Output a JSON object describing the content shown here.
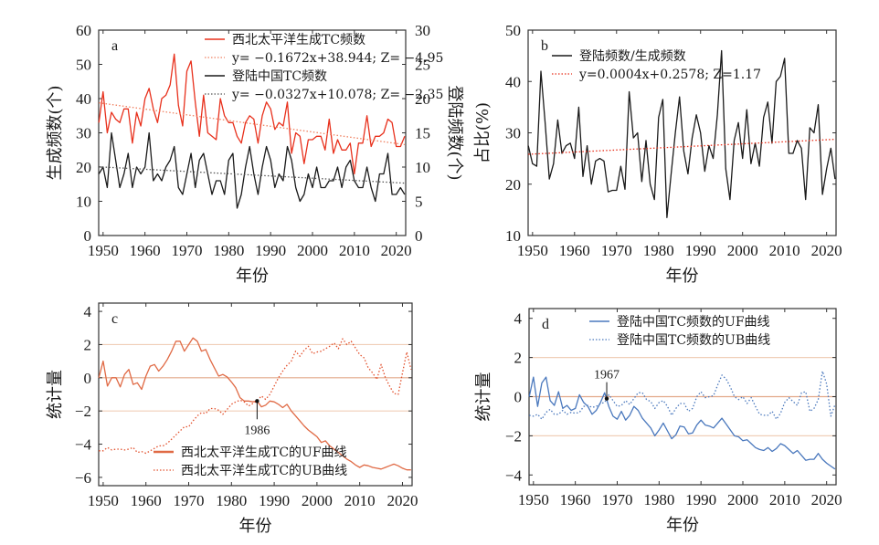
{
  "chart_data": [
    {
      "panel": "a",
      "type": "line",
      "xlabel": "年份",
      "ylabel": "生成频数(个)",
      "ylabel_right": "登陆频数(个)",
      "xlim": [
        1949,
        2022
      ],
      "ylim": [
        0,
        60
      ],
      "ylim_right": [
        0,
        30
      ],
      "xticks": [
        1950,
        1960,
        1970,
        1980,
        1990,
        2000,
        2010,
        2020
      ],
      "yticks": [
        0,
        10,
        20,
        30,
        40,
        50,
        60
      ],
      "yticks_right": [
        0,
        5,
        10,
        15,
        20,
        25,
        30
      ],
      "legend_position": "top-right",
      "x_start": 1949,
      "series": [
        {
          "name": "西北太平洋生成TC频数",
          "axis": "left",
          "color": "#e8301c",
          "style": "solid",
          "values": [
            33,
            42,
            30,
            36,
            34,
            33,
            37,
            37,
            27,
            36,
            32,
            40,
            43,
            37,
            33,
            40,
            41,
            44,
            53,
            38,
            32,
            48,
            51,
            39,
            29,
            41,
            30,
            29,
            28,
            40,
            35,
            33,
            33,
            29,
            27,
            33,
            35,
            34,
            27,
            35,
            39,
            37,
            31,
            33,
            32,
            39,
            24,
            30,
            29,
            21,
            28,
            28,
            29,
            29,
            25,
            34,
            24,
            28,
            25,
            25,
            27,
            18,
            27,
            27,
            35,
            26,
            29,
            29,
            30,
            34,
            33,
            26,
            26,
            29
          ]
        },
        {
          "name": "y= −0.1672x+38.944; Z= −4.95",
          "axis": "left",
          "color": "#f08060",
          "style": "dotted",
          "trend": {
            "slope": -0.1672,
            "intercept": 38.944,
            "z": -4.95
          }
        },
        {
          "name": "登陆中国TC频数",
          "axis": "right",
          "color": "#1a1a1a",
          "style": "solid",
          "values": [
            9,
            10,
            7,
            15,
            11,
            7,
            9,
            12,
            7,
            10,
            9,
            10,
            15,
            8,
            9,
            8,
            10,
            11,
            13,
            7,
            6,
            9,
            12,
            7,
            11,
            12,
            9,
            6,
            8,
            8,
            6,
            11,
            12,
            4,
            6,
            10,
            13,
            9,
            6,
            10,
            13,
            11,
            7,
            9,
            8,
            13,
            11,
            7,
            5,
            6,
            9,
            7,
            10,
            7,
            7,
            8,
            8,
            10,
            7,
            10,
            11,
            8,
            7,
            7,
            10,
            7,
            5,
            9,
            9,
            12,
            6,
            6,
            7,
            6
          ]
        },
        {
          "name": "y= −0.0327x+10.078; Z= −2.35",
          "axis": "right",
          "color": "#555555",
          "style": "dotted",
          "trend": {
            "slope": -0.0327,
            "intercept": 10.078,
            "z": -2.35
          }
        }
      ]
    },
    {
      "panel": "b",
      "type": "line",
      "xlabel": "年份",
      "ylabel": "占比(%)",
      "xlim": [
        1949,
        2022
      ],
      "ylim": [
        10,
        50
      ],
      "xticks": [
        1950,
        1960,
        1970,
        1980,
        1990,
        2000,
        2010,
        2020
      ],
      "yticks": [
        10,
        20,
        30,
        40,
        50
      ],
      "legend_position": "top-left",
      "x_start": 1949,
      "series": [
        {
          "name": "登陆频数/生成频数",
          "color": "#1a1a1a",
          "style": "solid",
          "values": [
            27.5,
            24,
            23.5,
            42,
            32,
            21,
            24,
            32.5,
            26,
            27.5,
            28,
            25,
            35,
            21.5,
            27.5,
            20,
            24.5,
            25,
            24.5,
            18.5,
            18.8,
            18.8,
            23.5,
            19,
            38,
            29,
            30,
            20.5,
            28.5,
            20,
            17,
            33,
            36.5,
            13.5,
            22,
            30,
            37,
            26.5,
            22,
            29,
            33.5,
            30,
            22.5,
            27.5,
            25,
            33.5,
            46,
            23,
            17,
            28.5,
            32,
            25,
            34.5,
            24,
            28,
            23.5,
            33,
            36,
            28,
            40,
            41,
            44.5,
            26,
            26,
            28.5,
            27,
            17,
            31,
            30,
            35.5,
            18,
            23,
            27,
            21
          ]
        },
        {
          "name": "y=0.0004x+0.2578; Z=1.17",
          "color": "#e8301c",
          "style": "dotted",
          "trend": {
            "slope": 0.0004,
            "intercept": 0.2578,
            "z": 1.17
          }
        }
      ]
    },
    {
      "panel": "c",
      "type": "line",
      "xlabel": "年份",
      "ylabel": "统计量",
      "xlim": [
        1949,
        2022
      ],
      "ylim": [
        -6.5,
        4.5
      ],
      "xticks": [
        1950,
        1960,
        1970,
        1980,
        1990,
        2000,
        2010,
        2020
      ],
      "yticks": [
        -6,
        -4,
        -2,
        0,
        2,
        4
      ],
      "reference_lines": [
        2,
        0,
        -2
      ],
      "legend_position": "bottom-center",
      "annotation": {
        "label": "1986",
        "x": 1986,
        "y": -1.4
      },
      "x_start": 1949,
      "series": [
        {
          "name": "西北太平洋生成TC的UF曲线",
          "color": "#e06a45",
          "style": "solid",
          "values": [
            0,
            1.0,
            -0.5,
            0,
            0,
            -0.55,
            0.2,
            0.5,
            -0.4,
            -0.3,
            -0.7,
            0.1,
            0.7,
            0.8,
            0.4,
            0.7,
            1.1,
            1.6,
            2.2,
            2.2,
            1.6,
            2.0,
            2.4,
            2.2,
            1.6,
            1.7,
            1.1,
            0.6,
            0.1,
            0.2,
            0.05,
            -0.25,
            -0.6,
            -1.2,
            -1.4,
            -1.4,
            -1.45,
            -1.4,
            -1.75,
            -1.65,
            -1.4,
            -1.45,
            -1.6,
            -1.8,
            -1.6,
            -2.0,
            -2.3,
            -2.6,
            -2.9,
            -3.15,
            -3.35,
            -3.55,
            -3.9,
            -3.8,
            -4.1,
            -4.3,
            -4.5,
            -4.7,
            -4.9,
            -5.05,
            -5.25,
            -5.4,
            -5.25,
            -5.3,
            -5.4,
            -5.45,
            -5.5,
            -5.4,
            -5.3,
            -5.2,
            -5.3,
            -5.45,
            -5.55,
            -5.55
          ]
        },
        {
          "name": "西北太平洋生成TC的UB曲线",
          "color": "#e2502c",
          "style": "dotted",
          "values": [
            -4.4,
            -4.4,
            -4.2,
            -4.35,
            -4.3,
            -4.3,
            -4.35,
            -4.3,
            -4.2,
            -4.5,
            -4.45,
            -4.55,
            -4.4,
            -4.25,
            -4.1,
            -4.1,
            -3.95,
            -3.7,
            -3.45,
            -3.2,
            -2.95,
            -2.95,
            -2.6,
            -2.3,
            -2.1,
            -2.15,
            -1.85,
            -1.85,
            -1.95,
            -2.2,
            -1.9,
            -1.6,
            -1.45,
            -1.35,
            -1.45,
            -1.7,
            -1.55,
            -1.4,
            -1.1,
            -1.3,
            -1.0,
            -0.5,
            0.0,
            0.4,
            0.75,
            1.0,
            1.6,
            1.3,
            1.65,
            1.9,
            1.45,
            1.55,
            1.6,
            1.75,
            1.9,
            2.1,
            1.75,
            2.35,
            2.0,
            2.2,
            1.8,
            1.4,
            1.2,
            0.6,
            0.3,
            -0.1,
            0.8,
            0.0,
            -0.5,
            -0.95,
            -1.0,
            0.3,
            1.55,
            0.5
          ]
        }
      ]
    },
    {
      "panel": "d",
      "type": "line",
      "xlabel": "年份",
      "ylabel": "统计量",
      "xlim": [
        1949,
        2022
      ],
      "ylim": [
        -4.5,
        4.5
      ],
      "xticks": [
        1950,
        1960,
        1970,
        1980,
        1990,
        2000,
        2010,
        2020
      ],
      "yticks": [
        -4,
        -2,
        0,
        2,
        4
      ],
      "reference_lines": [
        2,
        0,
        -2
      ],
      "legend_position": "top-center",
      "annotation": {
        "label": "1967",
        "x": 1967.5,
        "y": -0.1
      },
      "x_start": 1949,
      "series": [
        {
          "name": "登陆中国TC频数的UF曲线",
          "color": "#4a78bd",
          "style": "solid",
          "values": [
            0,
            1.0,
            -0.5,
            0.7,
            1.0,
            -0.2,
            -0.45,
            0.25,
            -0.6,
            -0.45,
            -0.7,
            -0.6,
            0.1,
            -0.3,
            -0.5,
            -0.9,
            -0.7,
            -0.3,
            0.2,
            -0.5,
            -1.0,
            -1.15,
            -0.75,
            -1.2,
            -0.95,
            -0.5,
            -0.7,
            -1.1,
            -1.35,
            -1.6,
            -2.0,
            -1.7,
            -1.35,
            -1.75,
            -2.15,
            -1.95,
            -1.5,
            -1.55,
            -1.9,
            -1.85,
            -1.45,
            -1.2,
            -1.45,
            -1.5,
            -1.6,
            -1.35,
            -1.1,
            -1.4,
            -1.7,
            -2.0,
            -2.05,
            -2.25,
            -2.2,
            -2.4,
            -2.6,
            -2.7,
            -2.75,
            -2.6,
            -2.8,
            -2.65,
            -2.4,
            -2.5,
            -2.7,
            -2.9,
            -2.75,
            -3.0,
            -3.25,
            -3.2,
            -3.2,
            -2.9,
            -3.2,
            -3.4,
            -3.55,
            -3.7
          ]
        },
        {
          "name": "登陆中国TC频数的UB曲线",
          "color": "#4a78bd",
          "style": "dotted",
          "values": [
            -0.95,
            -1.0,
            -0.9,
            -1.15,
            -0.8,
            -0.65,
            -0.9,
            -0.9,
            -0.7,
            -0.9,
            -0.8,
            -0.85,
            -0.8,
            -0.5,
            -0.45,
            -0.55,
            -0.5,
            -0.35,
            -0.3,
            0.1,
            -0.2,
            -0.5,
            -0.45,
            -0.2,
            -0.4,
            -0.1,
            0.2,
            0.2,
            -0.15,
            -0.25,
            -0.6,
            -0.3,
            -0.2,
            -0.5,
            -0.95,
            -0.6,
            -0.35,
            -0.35,
            -0.75,
            -0.6,
            0.0,
            0.25,
            -0.05,
            0.0,
            0.05,
            0.6,
            1.1,
            0.9,
            0.5,
            0.0,
            -0.15,
            0.0,
            -0.35,
            -0.05,
            -0.5,
            -0.9,
            -0.95,
            -0.95,
            -0.75,
            -1.15,
            -0.85,
            -0.3,
            -0.05,
            -0.25,
            -0.45,
            0.2,
            0.25,
            -0.75,
            -0.6,
            -0.15,
            1.3,
            0.65,
            -1.0,
            -0.4
          ]
        }
      ]
    }
  ],
  "panels": {
    "a": {
      "letter": "a",
      "xlabel": "年份",
      "ylabel": "生成频数(个)",
      "ylabel_right": "登陆频数(个)"
    },
    "b": {
      "letter": "b",
      "xlabel": "年份",
      "ylabel": "占比(%)"
    },
    "c": {
      "letter": "c",
      "xlabel": "年份",
      "ylabel": "统计量",
      "annotation": "1986"
    },
    "d": {
      "letter": "d",
      "xlabel": "年份",
      "ylabel": "统计量",
      "annotation": "1967"
    }
  }
}
